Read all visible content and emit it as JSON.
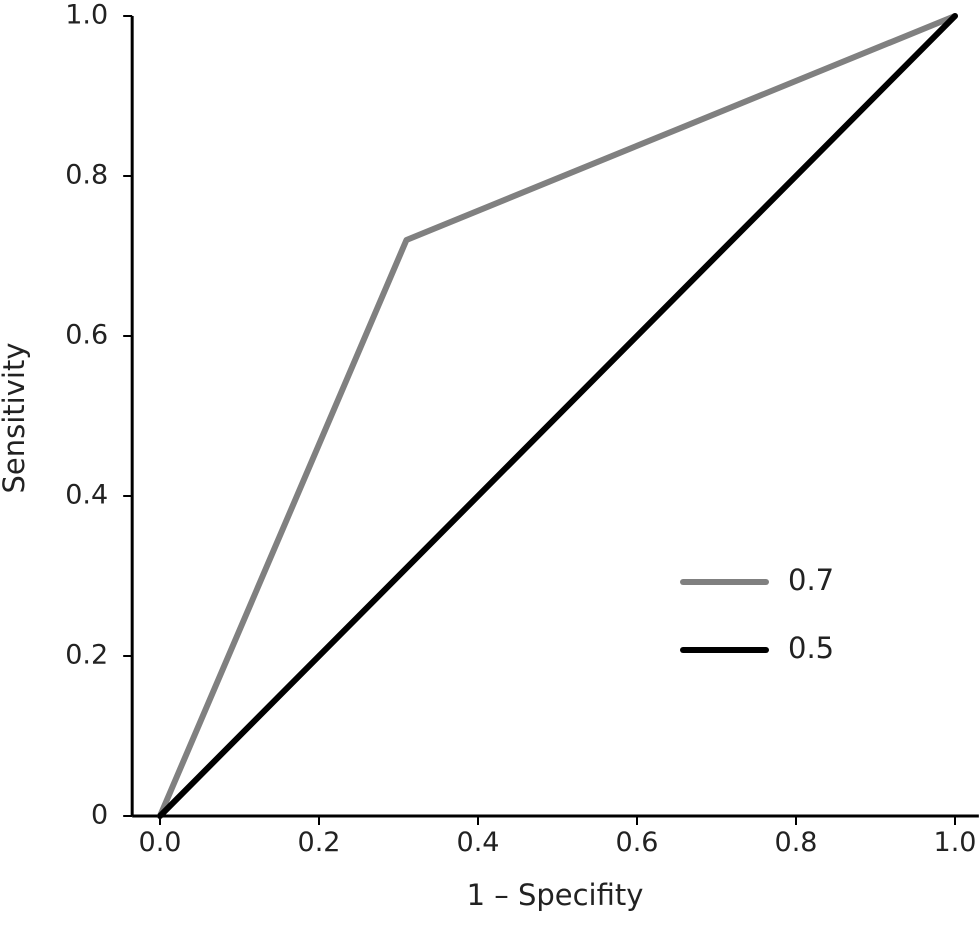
{
  "chart_data": {
    "type": "line",
    "title": "",
    "xlabel": "1 – Specifity",
    "ylabel": "Sensitivity",
    "xlim": [
      -0.035,
      1.03
    ],
    "ylim": [
      0,
      1.0
    ],
    "x_ticks": [
      {
        "value": 0.0,
        "label": "0.0"
      },
      {
        "value": 0.2,
        "label": "0.2"
      },
      {
        "value": 0.4,
        "label": "0.4"
      },
      {
        "value": 0.6,
        "label": "0.6"
      },
      {
        "value": 0.8,
        "label": "0.8"
      },
      {
        "value": 1.0,
        "label": "1.0"
      }
    ],
    "y_ticks": [
      {
        "value": 0.0,
        "label": "0"
      },
      {
        "value": 0.2,
        "label": "0.2"
      },
      {
        "value": 0.4,
        "label": "0.4"
      },
      {
        "value": 0.6,
        "label": "0.6"
      },
      {
        "value": 0.8,
        "label": "0.8"
      },
      {
        "value": 1.0,
        "label": "1.0"
      }
    ],
    "grid": false,
    "legend_position": "center-right",
    "series": [
      {
        "name": "0.7",
        "color": "#808080",
        "x": [
          0.0,
          0.31,
          1.0
        ],
        "y": [
          0.0,
          0.72,
          1.0
        ]
      },
      {
        "name": "0.5",
        "color": "#000000",
        "x": [
          0.0,
          1.0
        ],
        "y": [
          0.0,
          1.0
        ]
      }
    ]
  }
}
